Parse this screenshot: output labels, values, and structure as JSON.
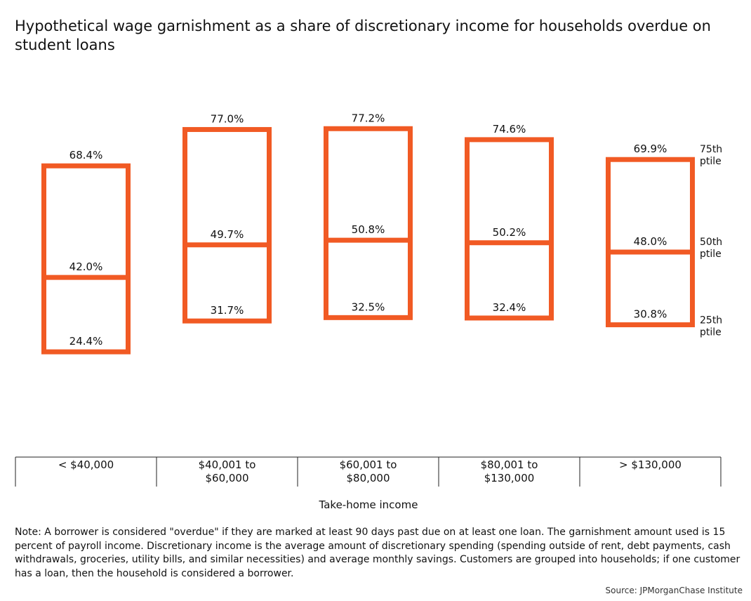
{
  "title": "Hypothetical wage garnishment as a share of discretionary income for households overdue on student loans",
  "note": "Note: A borrower is considered \"overdue\" if they are marked at least 90 days past due on at least one loan. The garnishment amount used is 15 percent of payroll income. Discretionary income is the average amount of discretionary spending (spending outside of rent, debt payments, cash withdrawals, groceries, utility bills, and similar necessities) and average monthly savings. Customers are grouped into households; if one customer has a loan, then the household is considered a borrower.",
  "source": "Source: JPMorganChase Institute",
  "colors": {
    "box": "#f15a24"
  },
  "chart_data": {
    "type": "boxplot",
    "title": "Hypothetical wage garnishment as a share of discretionary income for households overdue on student loans",
    "xlabel": "Take-home income",
    "ylabel": "",
    "categories": [
      [
        "< $40,000"
      ],
      [
        "$40,001 to",
        "$60,000"
      ],
      [
        "$60,001 to",
        "$80,000"
      ],
      [
        "$80,001 to",
        "$130,000"
      ],
      [
        "> $130,000"
      ]
    ],
    "p25": [
      24.4,
      31.7,
      32.5,
      32.4,
      30.8
    ],
    "p50": [
      42.0,
      49.7,
      50.8,
      50.2,
      48.0
    ],
    "p75": [
      68.4,
      77.0,
      77.2,
      74.6,
      69.9
    ],
    "labels": {
      "p25": [
        "24.4%",
        "31.7%",
        "32.5%",
        "32.4%",
        "30.8%"
      ],
      "p50": [
        "42.0%",
        "49.7%",
        "50.8%",
        "50.2%",
        "48.0%"
      ],
      "p75": [
        "68.4%",
        "77.0%",
        "77.2%",
        "74.6%",
        "69.9%"
      ]
    },
    "percentile_labels": {
      "p75": [
        "75th",
        "ptile"
      ],
      "p50": [
        "50th",
        "ptile"
      ],
      "p25": [
        "25th",
        "ptile"
      ]
    },
    "grid": false
  }
}
